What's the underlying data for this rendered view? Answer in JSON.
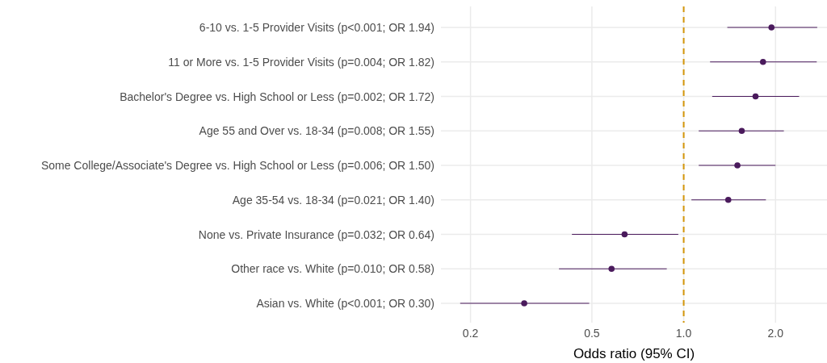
{
  "chart_data": {
    "type": "scatter",
    "orientation": "horizontal",
    "xlabel": "Odds ratio (95% CI)",
    "categories": [
      "6-10 vs. 1-5 Provider Visits (p<0.001; OR 1.94)",
      "11 or More vs. 1-5 Provider Visits (p=0.004; OR 1.82)",
      "Bachelor's Degree vs. High School or Less (p=0.002; OR 1.72)",
      "Age 55 and Over vs. 18-34 (p=0.008; OR 1.55)",
      "Some College/Associate's Degree vs. High School or Less (p=0.006; OR 1.50)",
      "Age 35-54 vs. 18-34 (p=0.021; OR 1.40)",
      "None vs. Private Insurance (p=0.032; OR 0.64)",
      "Other race vs. White (p=0.010; OR 0.58)",
      "Asian vs. White (p<0.001; OR 0.30)"
    ],
    "values": [
      1.94,
      1.82,
      1.72,
      1.55,
      1.5,
      1.4,
      0.64,
      0.58,
      0.3
    ],
    "errors": [
      [
        1.39,
        2.74
      ],
      [
        1.22,
        2.73
      ],
      [
        1.24,
        2.39
      ],
      [
        1.12,
        2.13
      ],
      [
        1.12,
        2.0
      ],
      [
        1.06,
        1.86
      ],
      [
        0.43,
        0.96
      ],
      [
        0.39,
        0.88
      ],
      [
        0.185,
        0.49
      ]
    ],
    "color": "#4a1a5c",
    "marker": "circle",
    "log": "x",
    "xlim": [
      0.16,
      2.95
    ],
    "xticks": [
      {
        "value": 0.2,
        "label": "0.2"
      },
      {
        "value": 0.5,
        "label": "0.5"
      },
      {
        "value": 1,
        "label": "1.0"
      },
      {
        "value": 2,
        "label": "2.0"
      }
    ],
    "grid": true,
    "ref_lines": [
      {
        "axis": "x",
        "value": 1,
        "color": "#d4960a",
        "line_style": "dashed"
      }
    ]
  }
}
